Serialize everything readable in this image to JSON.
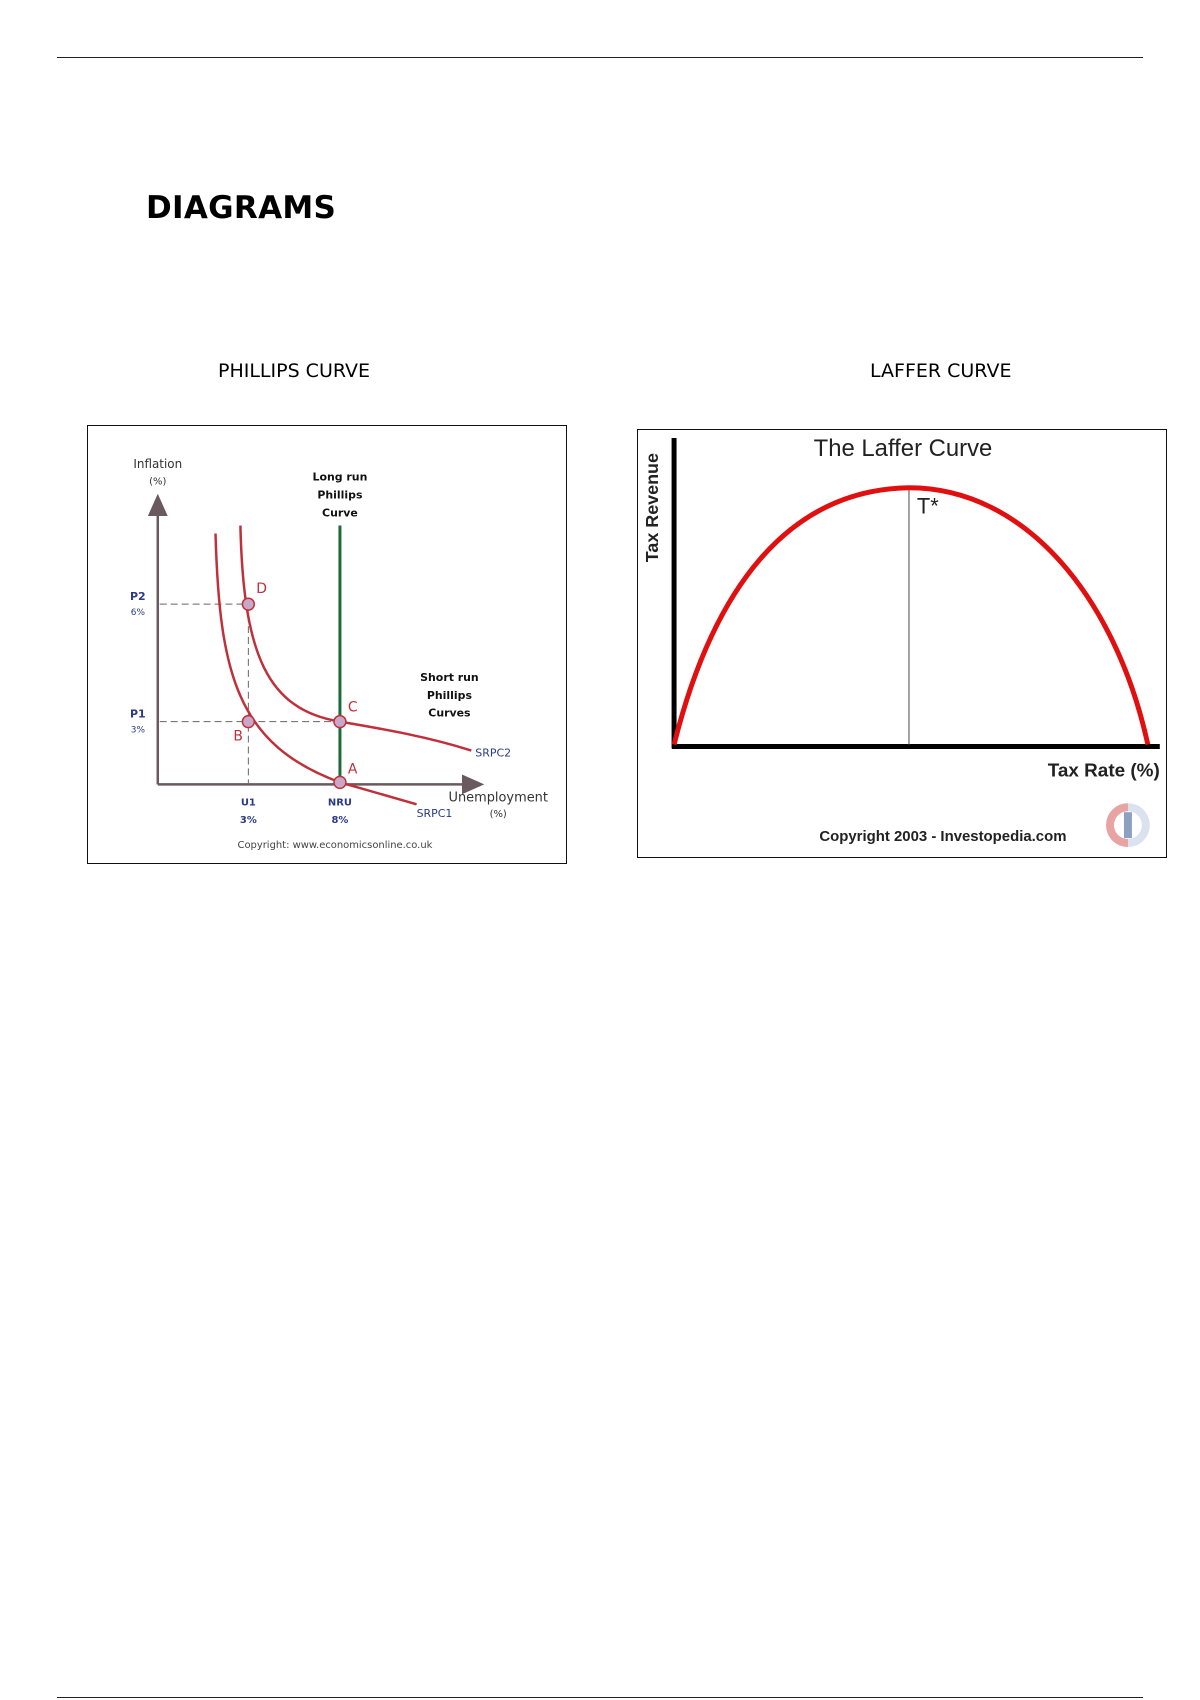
{
  "page": {
    "heading": "DIAGRAMS"
  },
  "phillips": {
    "caption": "PHILLIPS CURVE",
    "y_axis_label": "Inflation",
    "y_axis_unit": "(%)",
    "x_axis_label": "Unemployment",
    "x_axis_unit": "(%)",
    "lrpc_label": [
      "Long run",
      "Phillips",
      "Curve"
    ],
    "srpc_label": [
      "Short run",
      "Phillips",
      "Curves"
    ],
    "srpc1": "SRPC1",
    "srpc2": "SRPC2",
    "p2_label": "P2",
    "p2_value": "6%",
    "p1_label": "P1",
    "p1_value": "3%",
    "u1_label": "U1",
    "u1_value": "3%",
    "nru_label": "NRU",
    "nru_value": "8%",
    "point_a": "A",
    "point_b": "B",
    "point_c": "C",
    "point_d": "D",
    "copyright": "Copyright: www.economicsonline.co.uk",
    "colors": {
      "curve": "#c0303a",
      "lrpc": "#1e6b3a",
      "axis": "#6a5a60",
      "tick_label": "#2a3a8a",
      "point_fill": "#c8a8c8"
    }
  },
  "laffer": {
    "caption": "LAFFER CURVE",
    "title": "The Laffer Curve",
    "y_axis_label": "Tax Revenue",
    "x_axis_label": "Tax Rate (%)",
    "peak_label": "T*",
    "copyright": "Copyright 2003 - Investopedia.com",
    "logo_icon": "investopedia-logo",
    "colors": {
      "curve": "#e01010",
      "axis": "#000000"
    }
  }
}
